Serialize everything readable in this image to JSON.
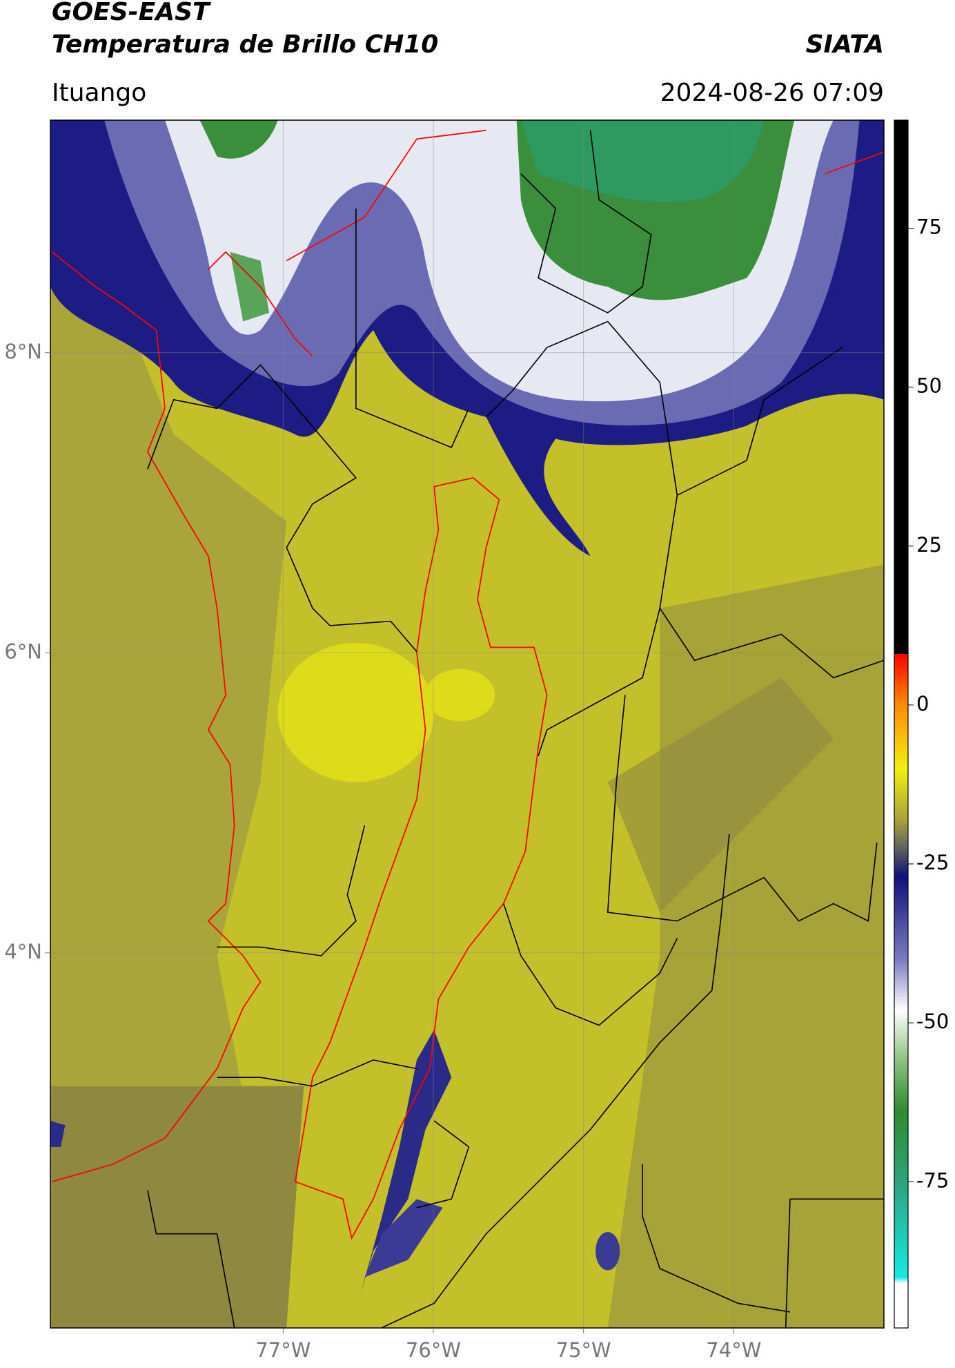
{
  "header": {
    "title": "GOES-EAST",
    "subtitle": "Temperatura de Brillo CH10",
    "source": "SIATA",
    "location": "Ituango",
    "datetime": "2024-08-26 07:09"
  },
  "map": {
    "xlim": [
      -78.55,
      -73.0
    ],
    "ylim": [
      1.5,
      9.55
    ],
    "xticks": [
      {
        "value": -77,
        "label": "77°W"
      },
      {
        "value": -76,
        "label": "76°W"
      },
      {
        "value": -75,
        "label": "75°W"
      },
      {
        "value": -74,
        "label": "74°W"
      }
    ],
    "yticks": [
      {
        "value": 4,
        "label": "4°N"
      },
      {
        "value": 6,
        "label": "6°N"
      },
      {
        "value": 8,
        "label": "8°N"
      }
    ],
    "grid": true
  },
  "colorbar": {
    "lim": [
      -98,
      92
    ],
    "ticks": [
      75,
      50,
      25,
      0,
      -25,
      -50,
      -75
    ]
  }
}
